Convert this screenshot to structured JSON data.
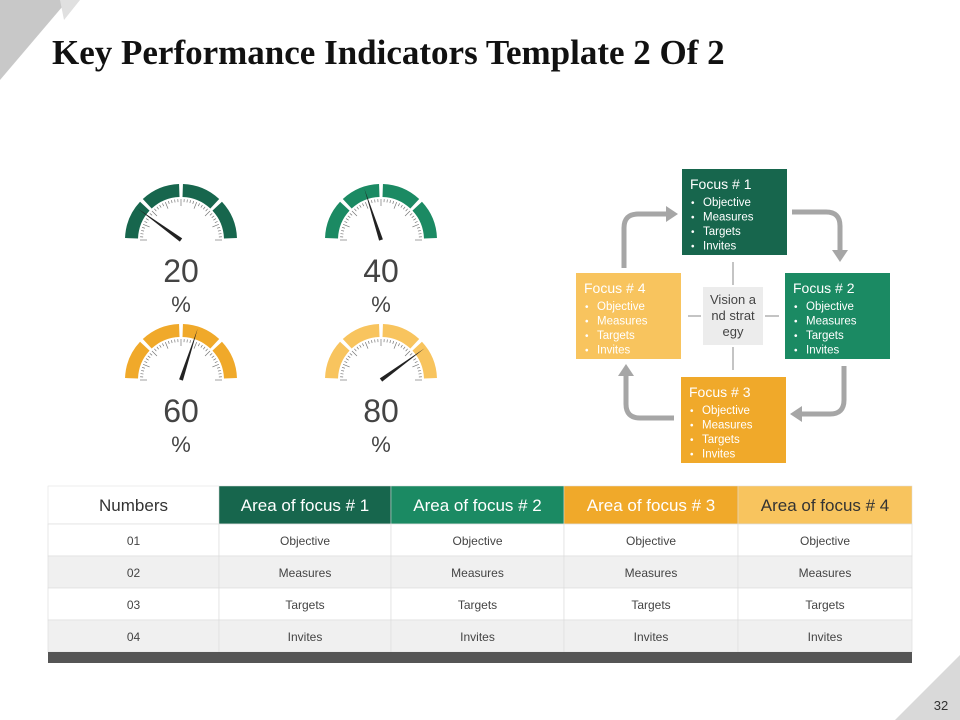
{
  "title": "Key Performance Indicators Template 2 Of 2",
  "gauge_scale": [
    0,
    100
  ],
  "gauges": [
    {
      "value": 20,
      "unit": "%",
      "color": "#17664d"
    },
    {
      "value": 40,
      "unit": "%",
      "color": "#1b8a63"
    },
    {
      "value": 60,
      "unit": "%",
      "color": "#f0a92a"
    },
    {
      "value": 80,
      "unit": "%",
      "color": "#f8c45e"
    }
  ],
  "diagram": {
    "center": "Vision and strategy",
    "nodes": [
      {
        "title": "Focus # 1",
        "items": [
          "Objective",
          "Measures",
          "Targets",
          "Invites"
        ],
        "color": "#17664d"
      },
      {
        "title": "Focus # 2",
        "items": [
          "Objective",
          "Measures",
          "Targets",
          "Invites"
        ],
        "color": "#1b8a63"
      },
      {
        "title": "Focus # 3",
        "items": [
          "Objective",
          "Measures",
          "Targets",
          "Invites"
        ],
        "color": "#f0a92a"
      },
      {
        "title": "Focus # 4",
        "items": [
          "Objective",
          "Measures",
          "Targets",
          "Invites"
        ],
        "color": "#f8c45e"
      }
    ]
  },
  "table": {
    "header": [
      "Numbers",
      "Area of focus # 1",
      "Area of focus # 2",
      "Area of focus # 3",
      "Area of focus # 4"
    ],
    "header_colors": [
      "#ffffff",
      "#17664d",
      "#1b8a63",
      "#f0a92a",
      "#f8c45e"
    ],
    "rows": [
      [
        "01",
        "Objective",
        "Objective",
        "Objective",
        "Objective"
      ],
      [
        "02",
        "Measures",
        "Measures",
        "Measures",
        "Measures"
      ],
      [
        "03",
        "Targets",
        "Targets",
        "Targets",
        "Targets"
      ],
      [
        "04",
        "Invites",
        "Invites",
        "Invites",
        "Invites"
      ]
    ]
  },
  "page_number": "32"
}
